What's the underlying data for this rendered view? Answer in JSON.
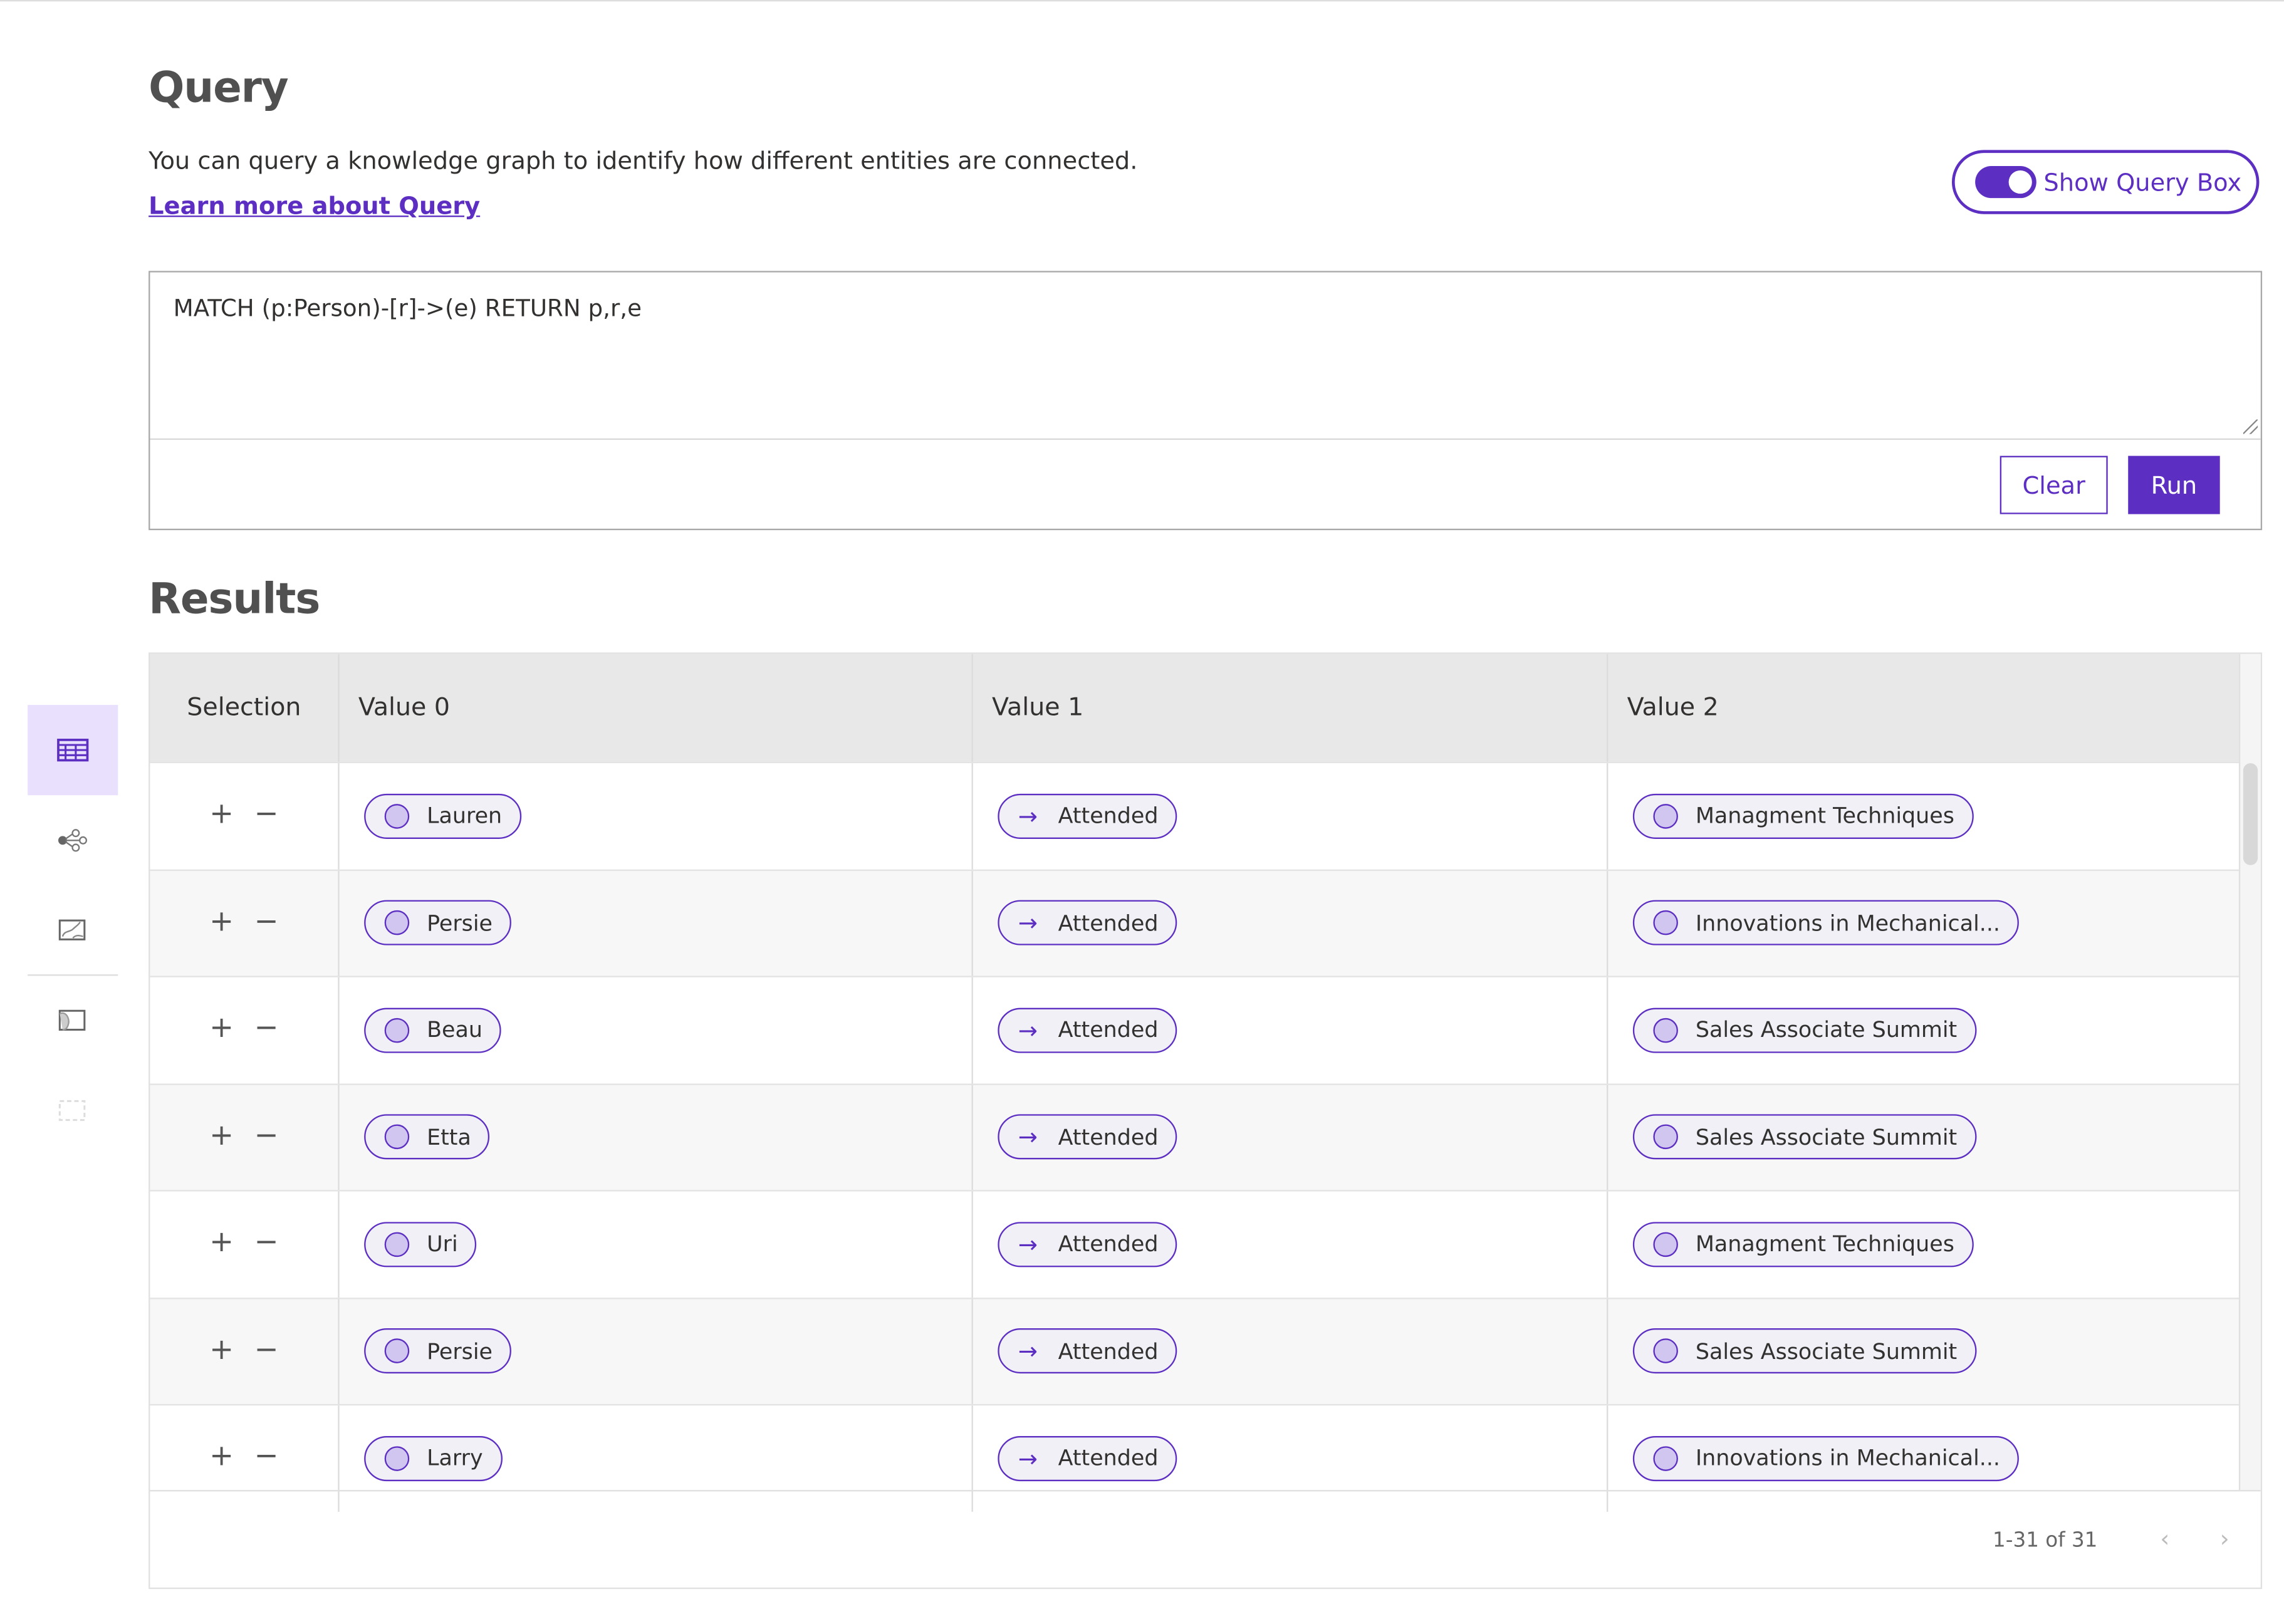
{
  "header": {
    "title": "Query",
    "description": "You can query a knowledge graph to identify how different entities are connected.",
    "learn_more": "Learn more about Query"
  },
  "toggle": {
    "label": "Show Query Box",
    "on": true
  },
  "query": {
    "text": "MATCH (p:Person)-[r]->(e) RETURN p,r,e",
    "clear_label": "Clear",
    "run_label": "Run"
  },
  "sidebar": {
    "items": [
      {
        "icon": "table-icon",
        "active": true
      },
      {
        "icon": "graph-icon",
        "active": false
      },
      {
        "icon": "chart-icon",
        "active": false
      },
      {
        "icon": "map-icon",
        "active": false
      },
      {
        "icon": "map-disabled-icon",
        "active": false
      }
    ]
  },
  "results": {
    "title": "Results",
    "columns": [
      "Selection",
      "Value 0",
      "Value 1",
      "Value 2"
    ],
    "rows": [
      {
        "v0": "Lauren",
        "v1": "Attended",
        "v2": "Managment Techniques"
      },
      {
        "v0": "Persie",
        "v1": "Attended",
        "v2": "Innovations in Mechanical..."
      },
      {
        "v0": "Beau",
        "v1": "Attended",
        "v2": "Sales Associate Summit"
      },
      {
        "v0": "Etta",
        "v1": "Attended",
        "v2": "Sales Associate Summit"
      },
      {
        "v0": "Uri",
        "v1": "Attended",
        "v2": "Managment Techniques"
      },
      {
        "v0": "Persie",
        "v1": "Attended",
        "v2": "Sales Associate Summit"
      },
      {
        "v0": "Larry",
        "v1": "Attended",
        "v2": "Innovations in Mechanical..."
      }
    ],
    "add_symbol": "+",
    "remove_symbol": "−",
    "arrow_symbol": "→",
    "pagination": "1-31 of 31"
  },
  "colors": {
    "accent": "#5c2fc2",
    "active_bg": "#e8e0fd"
  }
}
